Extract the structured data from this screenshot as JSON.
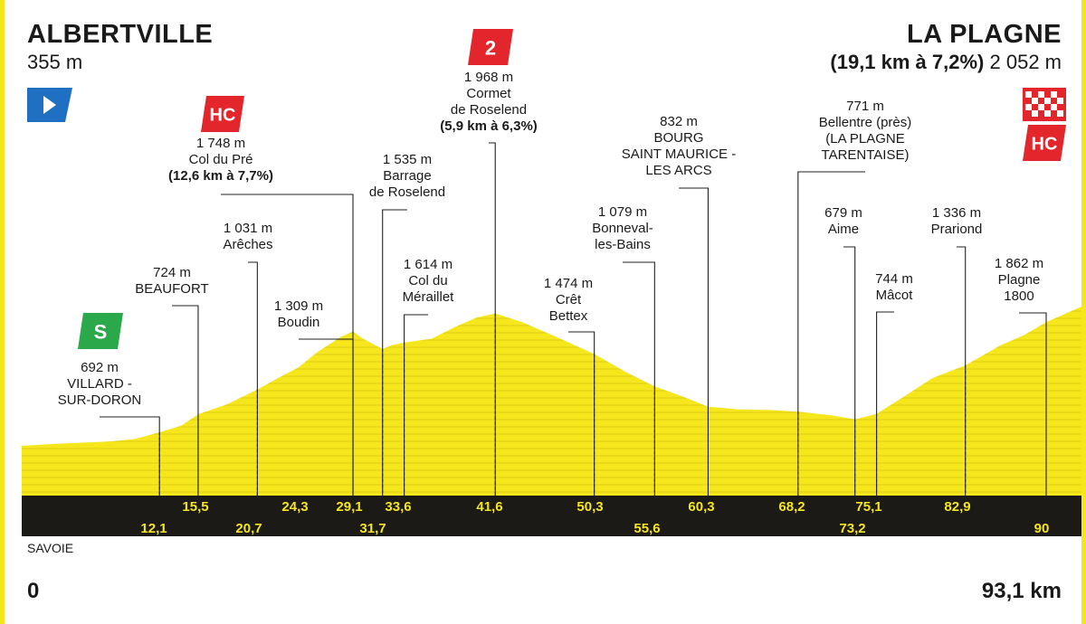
{
  "colors": {
    "profile": "#f6e61c",
    "band": "#1b1a17",
    "km_text": "#f6e61c",
    "hc": "#e3262b",
    "cat2": "#e3262b",
    "sprint": "#2aa84a",
    "start_flag": "#1f6fc2"
  },
  "header": {
    "start_name": "ALBERTVILLE",
    "start_alt": "355 m",
    "finish_name": "LA PLAGNE",
    "finish_climb": "(19,1 km à 7,2%)",
    "finish_alt": "2 052 m"
  },
  "icons": {
    "start": "start-flag-icon",
    "finish": "chequered-flag-icon",
    "sprint": "S",
    "hc": "HC",
    "cat2": "2"
  },
  "chart_data": {
    "type": "area",
    "title": "",
    "xlabel": "",
    "ylabel": "",
    "xlim": [
      0,
      93.1
    ],
    "ylim": [
      355,
      2052
    ],
    "profile": [
      [
        0,
        355
      ],
      [
        3,
        380
      ],
      [
        8,
        410
      ],
      [
        10,
        440
      ],
      [
        12.1,
        520
      ],
      [
        14,
        600
      ],
      [
        15.5,
        740
      ],
      [
        18,
        860
      ],
      [
        20.7,
        1040
      ],
      [
        22.5,
        1180
      ],
      [
        24.3,
        1309
      ],
      [
        26,
        1500
      ],
      [
        28,
        1680
      ],
      [
        29.1,
        1748
      ],
      [
        30,
        1660
      ],
      [
        31.7,
        1535
      ],
      [
        32.5,
        1580
      ],
      [
        33.6,
        1614
      ],
      [
        36,
        1660
      ],
      [
        38,
        1800
      ],
      [
        40,
        1920
      ],
      [
        41.6,
        1968
      ],
      [
        44,
        1860
      ],
      [
        47,
        1680
      ],
      [
        50.3,
        1474
      ],
      [
        53,
        1260
      ],
      [
        55.6,
        1079
      ],
      [
        58,
        960
      ],
      [
        60.3,
        832
      ],
      [
        63,
        800
      ],
      [
        66,
        790
      ],
      [
        68.2,
        771
      ],
      [
        71,
        730
      ],
      [
        73.2,
        679
      ],
      [
        75.1,
        744
      ],
      [
        78,
        1000
      ],
      [
        80,
        1180
      ],
      [
        82.9,
        1336
      ],
      [
        86,
        1580
      ],
      [
        88,
        1700
      ],
      [
        90,
        1862
      ],
      [
        93.1,
        2052
      ]
    ],
    "km_markers_top": [
      "15,5",
      "24,3",
      "29,1",
      "33,6",
      "41,6",
      "50,3",
      "60,3",
      "68,2",
      "75,1",
      "82,9"
    ],
    "km_markers_bottom": [
      "12,1",
      "20,7",
      "31,7",
      "55,6",
      "73,2",
      "90"
    ],
    "region": "SAVOIE",
    "dist_start": "0",
    "dist_end": "93,1 km",
    "waypoints": [
      {
        "id": "villard",
        "lines": [
          "692 m",
          "VILLARD -",
          "SUR-DORON"
        ]
      },
      {
        "id": "beaufort",
        "lines": [
          "724 m",
          "BEAUFORT"
        ]
      },
      {
        "id": "areches",
        "lines": [
          "1 031 m",
          "Arêches"
        ]
      },
      {
        "id": "boudin",
        "lines": [
          "1 309 m",
          "Boudin"
        ]
      },
      {
        "id": "colpre",
        "lines": [
          "1 748 m",
          "Col du Pré"
        ],
        "bold": "(12,6 km à 7,7%)"
      },
      {
        "id": "barrage",
        "lines": [
          "1 535 m",
          "Barrage",
          "de Roselend"
        ]
      },
      {
        "id": "meraillet",
        "lines": [
          "1 614 m",
          "Col du",
          "Méraillet"
        ]
      },
      {
        "id": "cormet",
        "lines": [
          "1 968 m",
          "Cormet",
          "de Roselend"
        ],
        "bold": "(5,9 km à 6,3%)"
      },
      {
        "id": "cret",
        "lines": [
          "1 474 m",
          "Crêt",
          "Bettex"
        ]
      },
      {
        "id": "bonneval",
        "lines": [
          "1 079 m",
          "Bonneval-",
          "les-Bains"
        ]
      },
      {
        "id": "bourg",
        "lines": [
          "832 m",
          "BOURG",
          "SAINT MAURICE -",
          "LES ARCS"
        ]
      },
      {
        "id": "bellentre",
        "lines": [
          "771 m",
          "Bellentre (près)",
          "(LA PLAGNE",
          "TARENTAISE)"
        ]
      },
      {
        "id": "aime",
        "lines": [
          "679 m",
          "Aime"
        ]
      },
      {
        "id": "macot",
        "lines": [
          "744 m",
          "Mâcot"
        ]
      },
      {
        "id": "prariond",
        "lines": [
          "1 336 m",
          "Prariond"
        ]
      },
      {
        "id": "plagne1800",
        "lines": [
          "1 862 m",
          "Plagne",
          "1800"
        ]
      }
    ]
  }
}
